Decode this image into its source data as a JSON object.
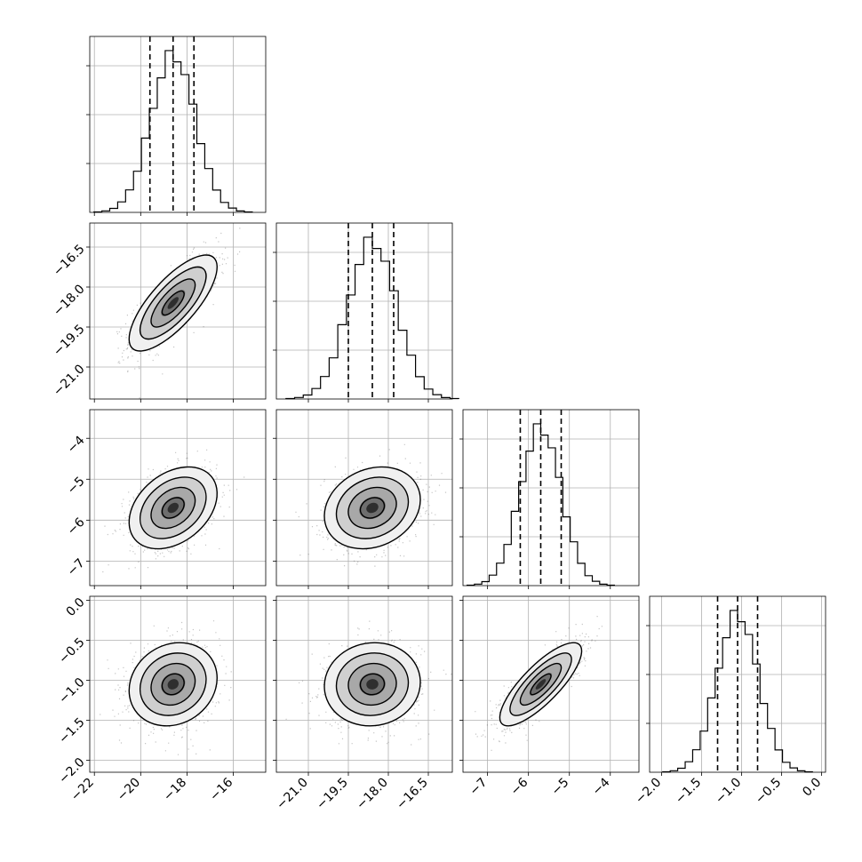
{
  "chart_data": {
    "type": "corner",
    "n_params": 4,
    "grid": true,
    "colors": {
      "line": "#000000",
      "grid": "#b0b0b0",
      "scatter": "#555555",
      "background": "#ffffff"
    },
    "parameters": [
      {
        "index": 0,
        "range": [
          -22.2,
          -14.6
        ],
        "ticks": [
          -22,
          -20,
          -18,
          -16
        ],
        "tick_labels": [
          "−22",
          "−20",
          "−18",
          "−16"
        ],
        "quantiles": [
          -19.6,
          -18.6,
          -17.7
        ],
        "center": -18.6,
        "sigma": 0.95
      },
      {
        "index": 1,
        "range": [
          -22.2,
          -15.6
        ],
        "ticks": [
          -21.0,
          -19.5,
          -18.0,
          -16.5
        ],
        "tick_labels": [
          "−21.0",
          "−19.5",
          "−18.0",
          "−16.5"
        ],
        "quantiles": [
          -19.5,
          -18.6,
          -17.8
        ],
        "center": -18.6,
        "sigma": 0.9
      },
      {
        "index": 2,
        "range": [
          -7.6,
          -3.3
        ],
        "ticks": [
          -7,
          -6,
          -5,
          -4
        ],
        "tick_labels": [
          "−7",
          "−6",
          "−5",
          "−4"
        ],
        "quantiles": [
          -6.2,
          -5.7,
          -5.2
        ],
        "center": -5.7,
        "sigma": 0.5
      },
      {
        "index": 3,
        "range": [
          -2.15,
          0.05
        ],
        "ticks": [
          -2.0,
          -1.5,
          -1.0,
          -0.5,
          0.0
        ],
        "tick_labels": [
          "−2.0",
          "−1.5",
          "−1.0",
          "−0.5",
          "0.0"
        ],
        "quantiles": [
          -1.3,
          -1.05,
          -0.8
        ],
        "center": -1.05,
        "sigma": 0.26
      }
    ],
    "correlations": [
      {
        "pair": [
          0,
          1
        ],
        "rho": 0.75
      },
      {
        "pair": [
          0,
          2
        ],
        "rho": 0.35
      },
      {
        "pair": [
          1,
          2
        ],
        "rho": 0.2
      },
      {
        "pair": [
          0,
          3
        ],
        "rho": 0.15
      },
      {
        "pair": [
          1,
          3
        ],
        "rho": 0.05
      },
      {
        "pair": [
          2,
          3
        ],
        "rho": 0.8
      }
    ],
    "histogram_bins": 20,
    "contour_levels": [
      0.5,
      1.0,
      1.5,
      2.0
    ]
  }
}
